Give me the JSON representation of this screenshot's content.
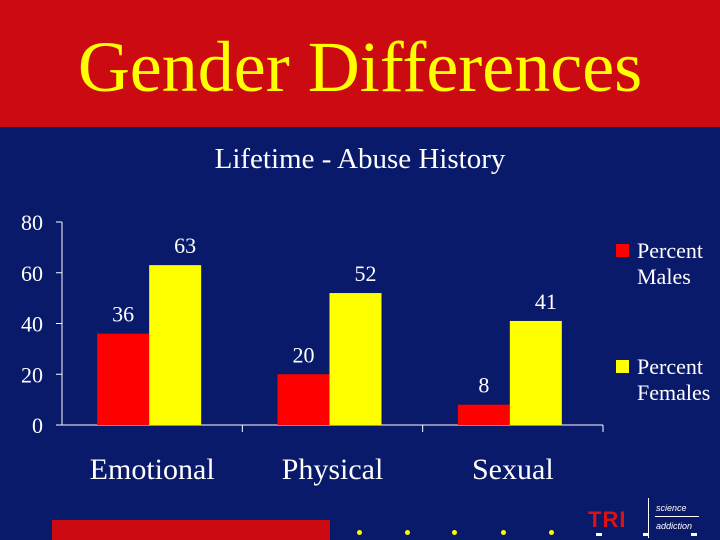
{
  "slide": {
    "title": "Gender Differences",
    "title_color": "#FFFF00",
    "band_color": "#CC0A12",
    "background_color": "#0A1A6B"
  },
  "chart_data": {
    "type": "bar",
    "title": "Lifetime - Abuse History",
    "categories": [
      "Emotional",
      "Physical",
      "Sexual"
    ],
    "series": [
      {
        "name": "Percent Males",
        "values": [
          36,
          20,
          8
        ],
        "color": "#FF0000"
      },
      {
        "name": "Percent Females",
        "values": [
          63,
          52,
          41
        ],
        "color": "#FFFF00"
      }
    ],
    "ylim": [
      0,
      80
    ],
    "yticks": [
      0,
      20,
      40,
      60,
      80
    ],
    "legend": "right",
    "grid": false,
    "data_labels": true
  },
  "footer": {
    "logo_text": "TRI",
    "logo_word_top": "science",
    "logo_word_bottom": "addiction"
  }
}
